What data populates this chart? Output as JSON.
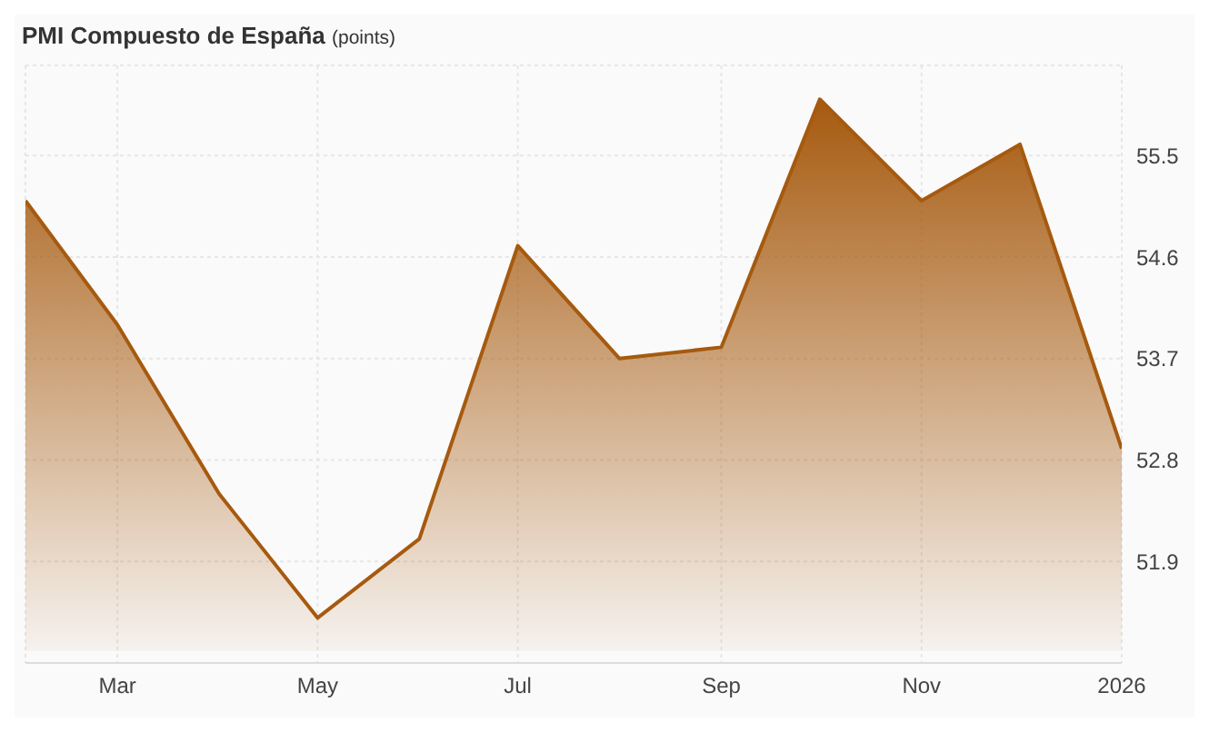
{
  "chart_data": {
    "type": "area",
    "title": "PMI Compuesto de España",
    "subtitle": "(points)",
    "x": [
      "2025-02",
      "2025-03",
      "2025-04",
      "2025-05",
      "2025-06",
      "2025-07",
      "2025-08",
      "2025-09",
      "2025-10",
      "2025-11",
      "2025-12",
      "2026-01"
    ],
    "series": [
      {
        "color": "#a65a0f",
        "values": [
          55.1,
          54.0,
          52.5,
          51.4,
          52.1,
          54.7,
          53.7,
          53.8,
          56.0,
          55.1,
          55.6,
          52.9
        ]
      }
    ],
    "xlim": [
      "2025-02",
      "2026-01"
    ],
    "xticks": [
      {
        "value": "2025-03",
        "label": "Mar"
      },
      {
        "value": "2025-05",
        "label": "May"
      },
      {
        "value": "2025-07",
        "label": "Jul"
      },
      {
        "value": "2025-09",
        "label": "Sep"
      },
      {
        "value": "2025-11",
        "label": "Nov"
      },
      {
        "value": "2026-01",
        "label": "2026"
      }
    ],
    "ylim": [
      51.0,
      56.3
    ],
    "yticks": [
      51.9,
      52.8,
      53.7,
      54.6,
      55.5
    ],
    "grid": true,
    "legend": false
  }
}
